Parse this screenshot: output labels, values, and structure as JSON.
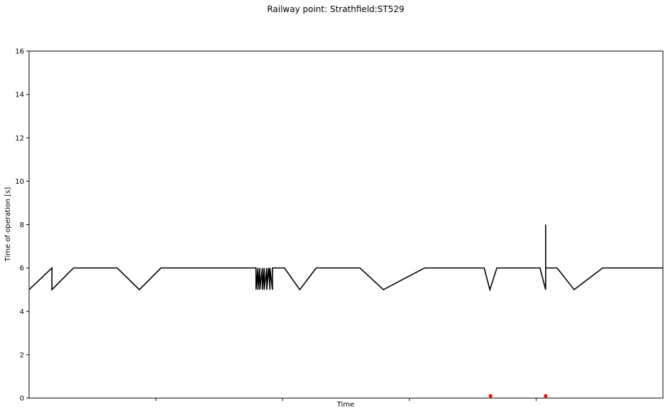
{
  "chart_data": {
    "type": "line",
    "title": "Railway point: Strathfield:ST529",
    "xlabel": "Time",
    "ylabel": "Time of operation [s]",
    "ylim": [
      0,
      16
    ],
    "xlim": [
      0,
      100
    ],
    "yticks": [
      0,
      2,
      4,
      6,
      8,
      10,
      12,
      14,
      16
    ],
    "xticks": [
      20,
      40,
      60,
      80
    ],
    "xtick_labels_visible": false,
    "grid": false,
    "series": [
      {
        "color": "#000000",
        "x": [
          0,
          3.6,
          3.6,
          7.0,
          13.9,
          17.4,
          20.8,
          35.8,
          35.8,
          36.1,
          36.1,
          36.4,
          36.4,
          36.8,
          36.8,
          37.1,
          37.1,
          37.5,
          37.5,
          37.8,
          38.0,
          38.0,
          38.4,
          38.4,
          40.3,
          42.7,
          45.3,
          52.2,
          55.9,
          62.4,
          71.8,
          72.7,
          73.8,
          80.6,
          81.5,
          81.5,
          81.5,
          83.3,
          86.0,
          90.5,
          100
        ],
        "y": [
          5,
          6,
          5,
          6,
          6,
          5,
          6,
          6,
          5,
          6,
          5,
          6,
          5,
          6,
          5,
          6,
          5,
          6,
          5,
          6,
          5,
          6,
          5,
          6,
          6,
          5,
          6,
          6,
          5,
          6,
          6,
          5,
          6,
          6,
          5,
          8,
          6,
          6,
          5,
          6,
          6
        ]
      }
    ],
    "markers": {
      "color": "#ff0000",
      "x": [
        72.8,
        81.5
      ],
      "y": [
        0.1,
        0.1
      ]
    }
  }
}
